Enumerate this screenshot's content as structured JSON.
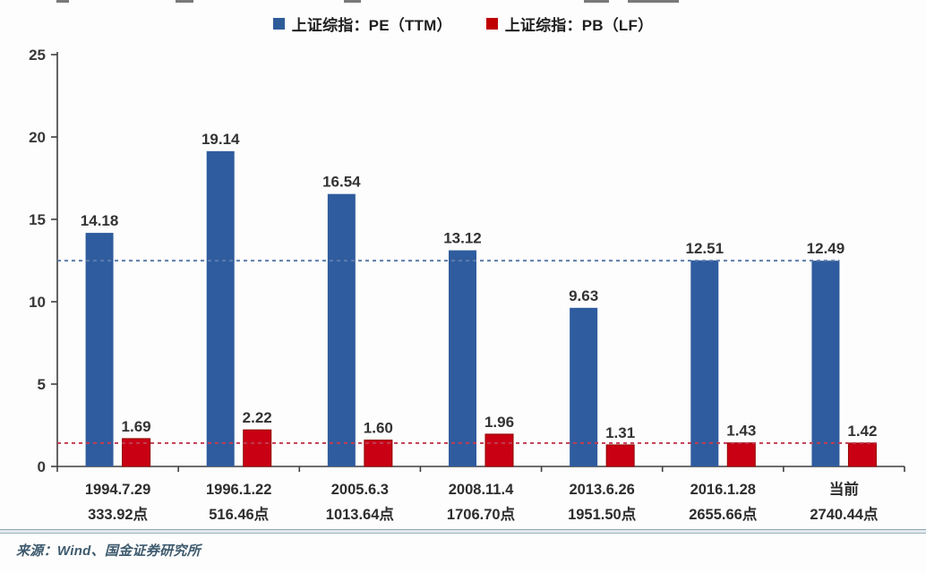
{
  "legend": {
    "items": [
      {
        "label": "上证综指：PE（TTM）",
        "color": "#2E5C99"
      },
      {
        "label": "上证综指：PB（LF）",
        "color": "#C00000"
      }
    ]
  },
  "chart_data": {
    "type": "bar",
    "title": "",
    "xlabel": "",
    "ylabel": "",
    "categories": [
      "1994.7.29",
      "1996.1.22",
      "2005.6.3",
      "2008.11.4",
      "2013.6.26",
      "2016.1.28",
      "当前"
    ],
    "category_sublabels": [
      "333.92点",
      "516.46点",
      "1013.64点",
      "1706.70点",
      "1951.50点",
      "2655.66点",
      "2740.44点"
    ],
    "series": [
      {
        "key": "pe",
        "name": "上证综指：PE（TTM）",
        "color": "#2F5C9E",
        "values": [
          14.18,
          19.14,
          16.54,
          13.12,
          9.63,
          12.51,
          12.49
        ]
      },
      {
        "key": "pb",
        "name": "上证综指：PB（LF）",
        "color": "#C90014",
        "values": [
          1.69,
          2.22,
          1.6,
          1.96,
          1.31,
          1.43,
          1.42
        ]
      }
    ],
    "ylim": [
      0,
      25
    ],
    "yticks": [
      0,
      5,
      10,
      15,
      20,
      25
    ],
    "reference_lines": [
      {
        "value": 12.49,
        "color": "#5D7CAB",
        "style": "dashed"
      },
      {
        "value": 1.42,
        "color": "#C23B52",
        "style": "dashed"
      }
    ],
    "legend_position": "top",
    "grid": false
  },
  "footer": {
    "source": "来源：Wind、国金证券研究所"
  }
}
